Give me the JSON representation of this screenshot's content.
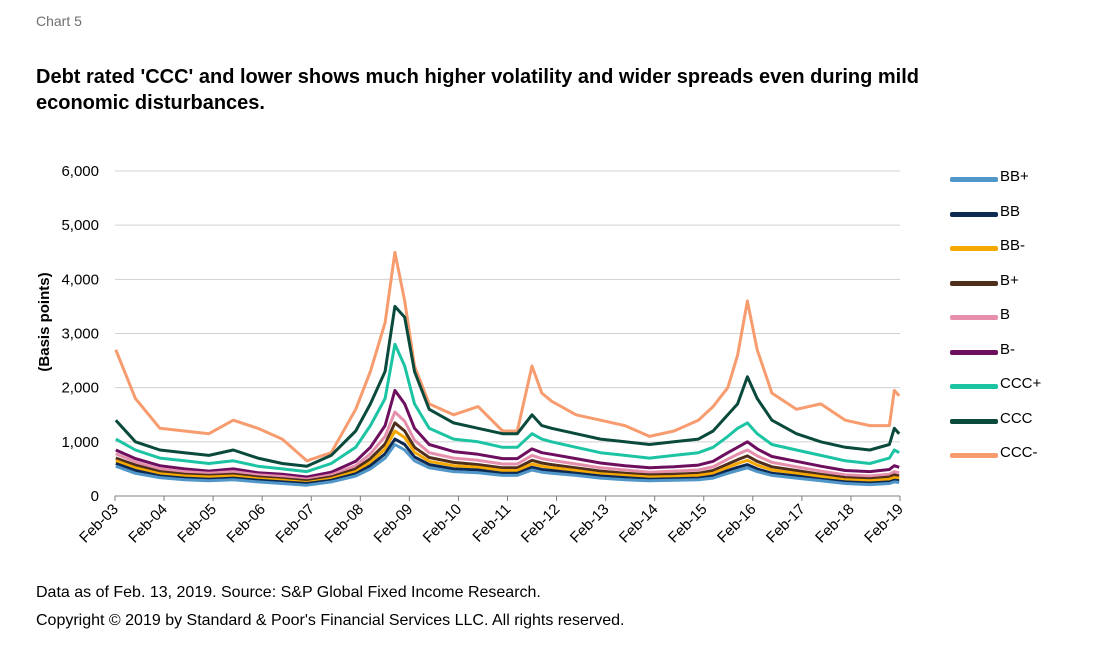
{
  "chart_label": "Chart 5",
  "title": "Debt rated 'CCC' and lower shows much higher volatility and wider spreads even during mild economic disturbances.",
  "source": "Data as of Feb. 13, 2019. Source: S&P Global Fixed Income Research.",
  "copyright": "Copyright © 2019 by Standard & Poor's Financial Services LLC. All rights reserved.",
  "chart_data": {
    "type": "line",
    "title": "",
    "xlabel": "",
    "ylabel": "(Basis points)",
    "ylim": [
      0,
      6000
    ],
    "yticks": [
      "0",
      "1,000",
      "2,000",
      "3,000",
      "4,000",
      "5,000",
      "6,000"
    ],
    "ytick_values": [
      0,
      1000,
      2000,
      3000,
      4000,
      5000,
      6000
    ],
    "x_range": [
      2003.083,
      2019.117
    ],
    "xticks": [
      "Feb-03",
      "Feb-04",
      "Feb-05",
      "Feb-06",
      "Feb-07",
      "Feb-08",
      "Feb-09",
      "Feb-10",
      "Feb-11",
      "Feb-12",
      "Feb-13",
      "Feb-14",
      "Feb-15",
      "Feb-16",
      "Feb-17",
      "Feb-18",
      "Feb-19"
    ],
    "grid": "horizontal",
    "legend_position": "right",
    "x": [
      2003.1,
      2003.5,
      2004.0,
      2004.5,
      2005.0,
      2005.5,
      2006.0,
      2006.5,
      2007.0,
      2007.5,
      2008.0,
      2008.3,
      2008.6,
      2008.8,
      2009.0,
      2009.2,
      2009.5,
      2010.0,
      2010.5,
      2011.0,
      2011.3,
      2011.6,
      2011.8,
      2012.0,
      2012.5,
      2013.0,
      2013.5,
      2014.0,
      2014.5,
      2015.0,
      2015.3,
      2015.6,
      2015.8,
      2016.0,
      2016.2,
      2016.5,
      2017.0,
      2017.5,
      2018.0,
      2018.5,
      2018.9,
      2019.0,
      2019.1
    ],
    "series": [
      {
        "name": "BB+",
        "color": "#5096c8",
        "values": [
          550,
          420,
          340,
          300,
          280,
          300,
          260,
          230,
          200,
          260,
          370,
          500,
          700,
          950,
          850,
          650,
          520,
          450,
          430,
          380,
          380,
          480,
          440,
          420,
          380,
          330,
          300,
          280,
          290,
          300,
          330,
          420,
          470,
          520,
          450,
          380,
          330,
          280,
          230,
          210,
          230,
          260,
          250
        ]
      },
      {
        "name": "BB",
        "color": "#0e2a52",
        "values": [
          600,
          470,
          370,
          330,
          310,
          330,
          290,
          260,
          230,
          290,
          410,
          560,
          780,
          1050,
          950,
          720,
          580,
          500,
          480,
          420,
          420,
          530,
          490,
          470,
          420,
          370,
          340,
          310,
          320,
          330,
          370,
          470,
          530,
          580,
          500,
          420,
          370,
          310,
          260,
          240,
          260,
          290,
          280
        ]
      },
      {
        "name": "BB-",
        "color": "#f5a800",
        "values": [
          650,
          520,
          410,
          370,
          350,
          370,
          320,
          290,
          250,
          320,
          450,
          620,
          870,
          1200,
          1080,
          810,
          640,
          560,
          530,
          470,
          470,
          590,
          550,
          520,
          470,
          410,
          380,
          350,
          360,
          380,
          420,
          530,
          600,
          660,
          570,
          480,
          420,
          360,
          300,
          280,
          310,
          340,
          330
        ]
      },
      {
        "name": "B+",
        "color": "#4f2e1b",
        "values": [
          700,
          570,
          450,
          400,
          380,
          400,
          350,
          320,
          280,
          350,
          500,
          690,
          960,
          1350,
          1200,
          900,
          710,
          620,
          580,
          520,
          520,
          660,
          610,
          580,
          520,
          460,
          420,
          390,
          400,
          420,
          470,
          590,
          670,
          740,
          640,
          540,
          470,
          400,
          340,
          320,
          350,
          390,
          370
        ]
      },
      {
        "name": "B",
        "color": "#e58fad",
        "values": [
          780,
          630,
          500,
          450,
          420,
          450,
          390,
          360,
          310,
          390,
          560,
          780,
          1100,
          1550,
          1380,
          1030,
          800,
          700,
          660,
          590,
          590,
          750,
          690,
          660,
          590,
          520,
          480,
          440,
          460,
          480,
          540,
          680,
          770,
          850,
          740,
          620,
          540,
          460,
          390,
          370,
          400,
          450,
          430
        ]
      },
      {
        "name": "B-",
        "color": "#6d0e5f",
        "values": [
          850,
          690,
          560,
          500,
          460,
          500,
          430,
          400,
          350,
          440,
          640,
          900,
          1300,
          1950,
          1700,
          1250,
          950,
          820,
          770,
          690,
          690,
          870,
          800,
          770,
          690,
          610,
          560,
          520,
          540,
          570,
          640,
          800,
          900,
          1000,
          870,
          730,
          640,
          550,
          470,
          450,
          490,
          560,
          530
        ]
      },
      {
        "name": "CCC+",
        "color": "#1cc4a4",
        "values": [
          1050,
          850,
          700,
          650,
          600,
          650,
          550,
          500,
          450,
          600,
          900,
          1300,
          1800,
          2800,
          2400,
          1700,
          1250,
          1050,
          1000,
          900,
          900,
          1150,
          1050,
          1000,
          900,
          800,
          750,
          700,
          750,
          800,
          900,
          1100,
          1250,
          1350,
          1150,
          950,
          850,
          750,
          650,
          600,
          700,
          850,
          800
        ]
      },
      {
        "name": "CCC",
        "color": "#0a4a3c",
        "values": [
          1400,
          1000,
          850,
          800,
          750,
          850,
          700,
          600,
          550,
          750,
          1200,
          1700,
          2300,
          3500,
          3300,
          2300,
          1600,
          1350,
          1250,
          1150,
          1150,
          1500,
          1300,
          1250,
          1150,
          1050,
          1000,
          950,
          1000,
          1050,
          1200,
          1500,
          1700,
          2200,
          1800,
          1400,
          1150,
          1000,
          900,
          850,
          950,
          1250,
          1150
        ]
      },
      {
        "name": "CCC-",
        "color": "#f79c6e",
        "values": [
          2700,
          1800,
          1250,
          1200,
          1150,
          1400,
          1250,
          1050,
          650,
          800,
          1600,
          2300,
          3200,
          4500,
          3600,
          2400,
          1700,
          1500,
          1650,
          1200,
          1200,
          2400,
          1900,
          1750,
          1500,
          1400,
          1300,
          1100,
          1200,
          1400,
          1650,
          2000,
          2600,
          3600,
          2700,
          1900,
          1600,
          1700,
          1400,
          1300,
          1300,
          1950,
          1850
        ]
      }
    ]
  }
}
